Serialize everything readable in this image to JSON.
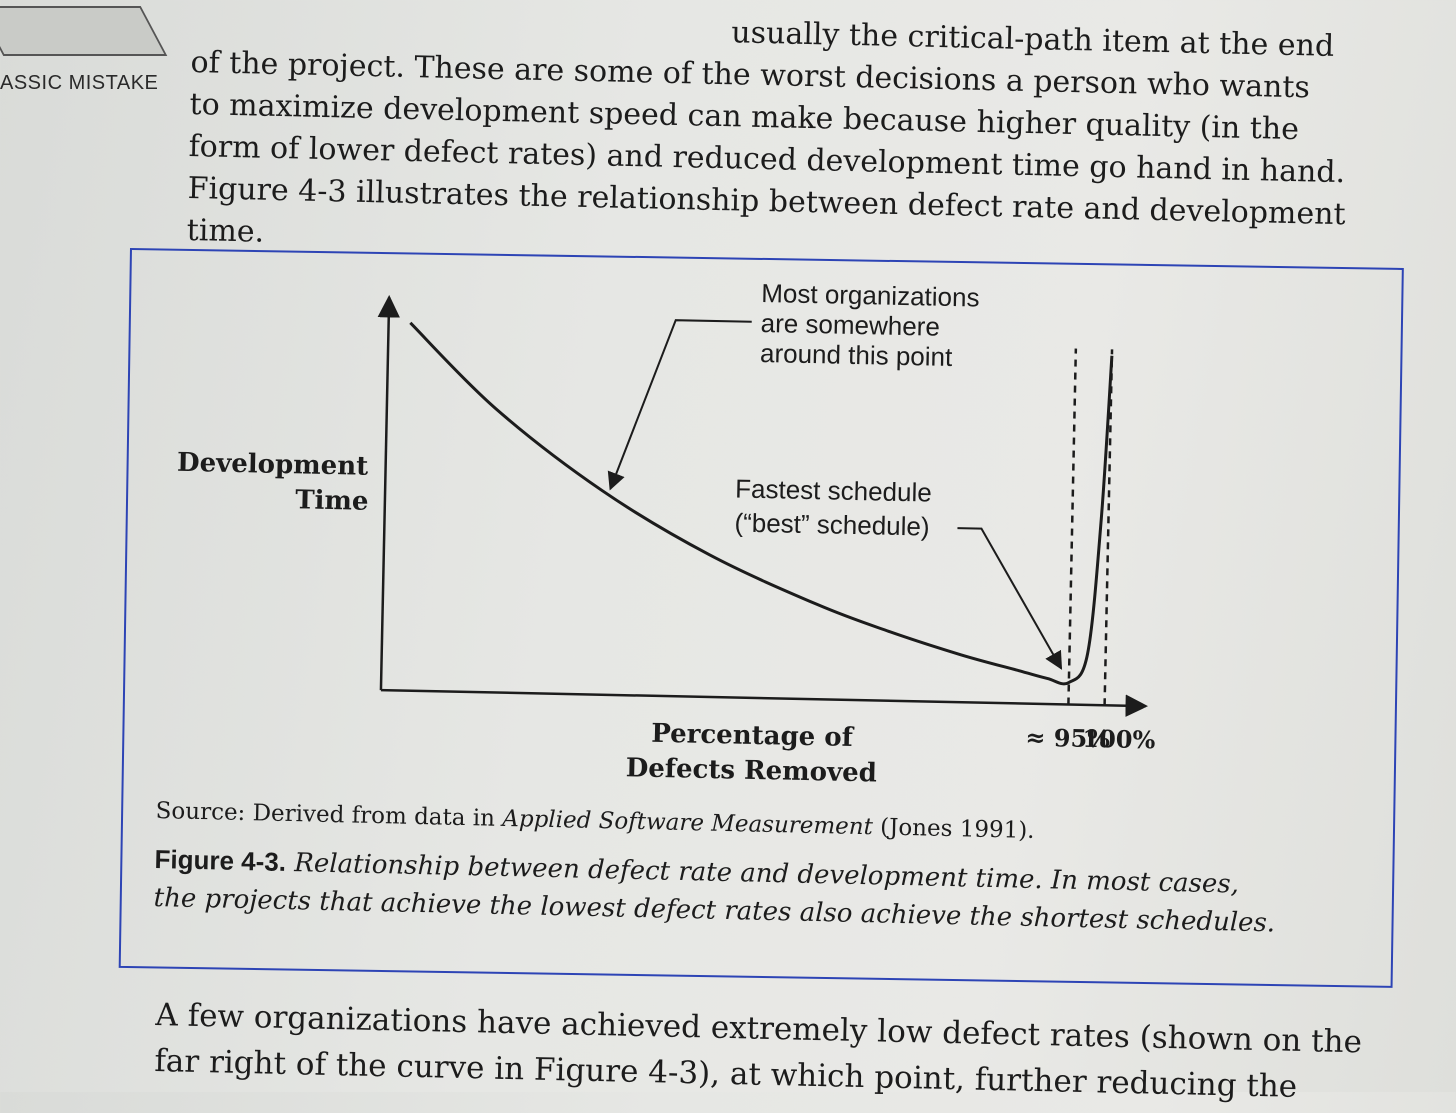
{
  "margin": {
    "note": "ASSIC MISTAKE"
  },
  "top_text": [
    "usually the critical-path item at the end",
    "of the project. These are some of the worst decisions a person who wants",
    "to maximize development speed can make because higher quality (in the",
    "form of lower defect rates) and reduced development time go hand in hand.",
    "Figure 4-3 illustrates the relationship between defect rate and development",
    "time."
  ],
  "chart_data": {
    "type": "line",
    "title": "",
    "xlabel": "Percentage of Defects Removed",
    "ylabel": "Development Time",
    "xlabel_lines": [
      "Percentage of",
      "Defects Removed"
    ],
    "ylabel_lines": [
      "Development",
      "Time"
    ],
    "x_ticks": [
      "≈ 95%",
      "100%"
    ],
    "xlim": [
      0,
      105
    ],
    "ylim": [
      0,
      100
    ],
    "series": [
      {
        "x": [
          3,
          15,
          30,
          45,
          60,
          70,
          80,
          88,
          92,
          95,
          97.5,
          99,
          100
        ],
        "y": [
          95,
          72,
          50,
          33,
          20,
          13,
          7,
          3,
          1,
          0,
          8,
          45,
          90
        ]
      }
    ],
    "reference_lines_x": [
      95,
      100
    ],
    "annotations": [
      {
        "lines": [
          "Most organizations",
          "are somewhere",
          "around this point"
        ],
        "target_x": 30
      },
      {
        "lines": [
          "Fastest schedule",
          "(“best” schedule)"
        ],
        "target_x": 95
      }
    ],
    "grid": false
  },
  "figure": {
    "source_prefix": "Source: Derived from data in ",
    "source_title": "Applied Software Measurement",
    "source_suffix": " (Jones 1991).",
    "label": "Figure 4-3.",
    "caption_line1": "Relationship between defect rate and development time. In most cases,",
    "caption_line2": "the projects that achieve the lowest defect rates also achieve the shortest schedules."
  },
  "bottom_text": [
    "A few organizations have achieved extremely low defect rates (shown on the",
    "far right of the curve in Figure 4-3), at which point, further reducing the"
  ],
  "colors": {
    "ink": "#1c1c1c",
    "pen_frame": "#2d44b5",
    "paper": "#e6e7e4"
  }
}
